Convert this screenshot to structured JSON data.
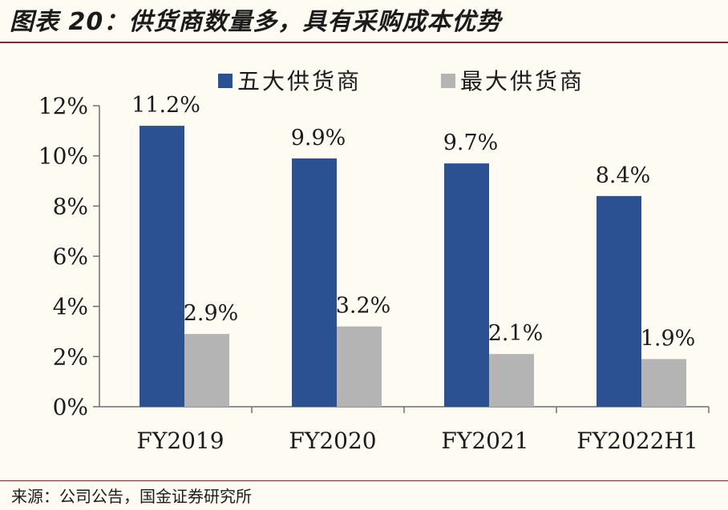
{
  "figure": {
    "title": "图表 20：供货商数量多，具有采购成本优势",
    "source": "来源：公司公告，国金证券研究所"
  },
  "chart_data": {
    "type": "bar",
    "categories": [
      "FY2019",
      "FY2020",
      "FY2021",
      "FY2022H1"
    ],
    "series": [
      {
        "name": "五大供货商",
        "values": [
          11.2,
          9.9,
          9.7,
          8.4
        ],
        "labels": [
          "11.2%",
          "9.9%",
          "9.7%",
          "8.4%"
        ],
        "color": "#2b5193"
      },
      {
        "name": "最大供货商",
        "values": [
          2.9,
          3.2,
          2.1,
          1.9
        ],
        "labels": [
          "2.9%",
          "3.2%",
          "2.1%",
          "1.9%"
        ],
        "color": "#b4b4b4"
      }
    ],
    "yticks": [
      0,
      2,
      4,
      6,
      8,
      10,
      12
    ],
    "ytick_labels": [
      "0%",
      "2%",
      "4%",
      "6%",
      "8%",
      "10%",
      "12%"
    ],
    "ylim": [
      0,
      12
    ],
    "grid": false,
    "legend_position": "top"
  }
}
